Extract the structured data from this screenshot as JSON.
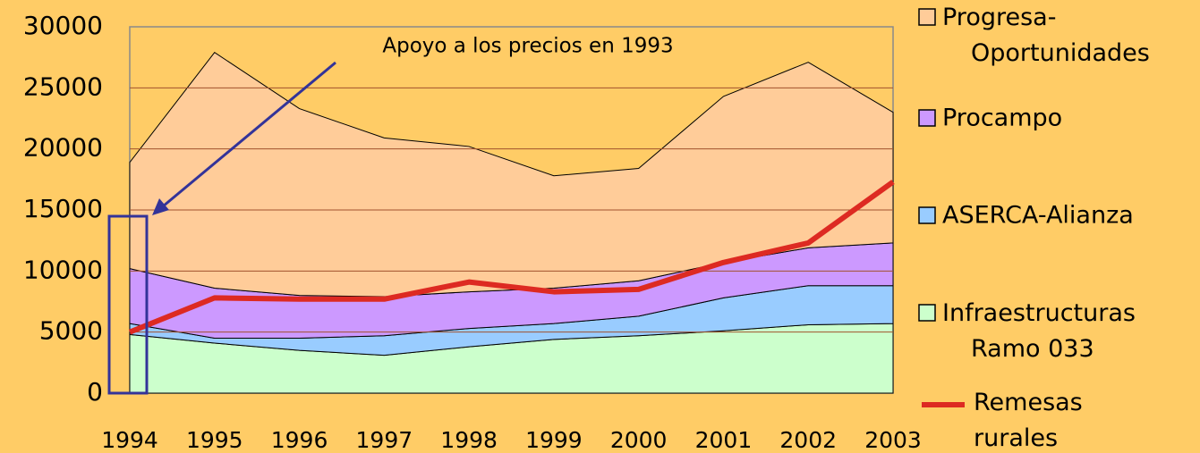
{
  "chart_data": {
    "type": "stacked_area",
    "categories": [
      "1994",
      "1995",
      "1996",
      "1997",
      "1998",
      "1999",
      "2000",
      "2001",
      "2002",
      "2003"
    ],
    "series": [
      {
        "name": "Infraestructuras Ramo 033",
        "color": "#ccffcc",
        "values": [
          4800,
          4100,
          3500,
          3100,
          3800,
          4400,
          4700,
          5100,
          5600,
          5700
        ]
      },
      {
        "name": "ASERCA-Alianza",
        "color": "#99ccff",
        "values": [
          900,
          400,
          1000,
          1600,
          1500,
          1300,
          1600,
          2700,
          3200,
          3100
        ]
      },
      {
        "name": "Procampo",
        "color": "#cc99ff",
        "values": [
          4500,
          4100,
          3500,
          3200,
          3000,
          2900,
          2900,
          2900,
          3100,
          3500
        ]
      },
      {
        "name": "Progresa-Oportunidades",
        "color": "#ffcc99",
        "values": [
          8700,
          19300,
          15300,
          13000,
          11900,
          9200,
          9200,
          13600,
          15200,
          10700
        ]
      },
      {
        "name": "Remesas rurales",
        "color": "#dd2a22",
        "type": "line",
        "values": [
          5000,
          7800,
          7700,
          7700,
          9100,
          8300,
          8500,
          10700,
          12300,
          17300
        ]
      }
    ],
    "ylim": [
      0,
      30000
    ],
    "yticks": [
      0,
      5000,
      10000,
      15000,
      20000,
      25000,
      30000
    ],
    "grid": true,
    "annotation": "Apoyo a los precios en 1993"
  }
}
